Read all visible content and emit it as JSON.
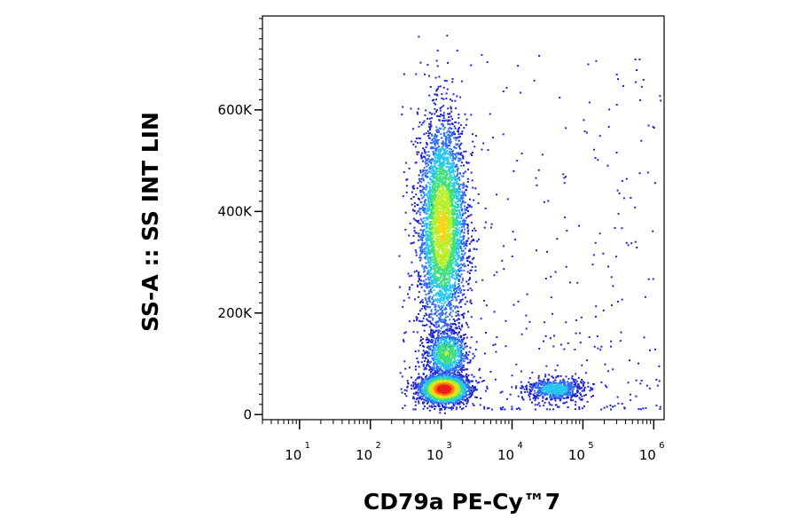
{
  "chart_data": {
    "type": "scatter",
    "style": "flow-cytometry density dot plot",
    "xlabel": "CD79a PE-Cy™7",
    "ylabel": "SS-A :: SS INT LIN",
    "x_scale": "log",
    "xlim": [
      3,
      1400000
    ],
    "x_ticks": [
      {
        "value": 10,
        "base": "10",
        "exp": "1"
      },
      {
        "value": 100,
        "base": "10",
        "exp": "2"
      },
      {
        "value": 1000,
        "base": "10",
        "exp": "3"
      },
      {
        "value": 10000,
        "base": "10",
        "exp": "4"
      },
      {
        "value": 100000,
        "base": "10",
        "exp": "5"
      },
      {
        "value": 1000000,
        "base": "10",
        "exp": "6"
      }
    ],
    "y_scale": "linear",
    "ylim": [
      -10000,
      785000
    ],
    "y_ticks": [
      {
        "value": 0,
        "label": "0"
      },
      {
        "value": 200000,
        "label": "200K"
      },
      {
        "value": 400000,
        "label": "400K"
      },
      {
        "value": 600000,
        "label": "600K"
      }
    ],
    "grid": false,
    "density_colors": [
      "#1f22d6",
      "#2f6df5",
      "#27c6ef",
      "#3fe07f",
      "#b9ef2a",
      "#ffd21a",
      "#ff7a16",
      "#e8201a"
    ],
    "populations": [
      {
        "x_center": 1100,
        "y_center": 50000,
        "x_spread_decades": 0.17,
        "y_spread": 14000,
        "count": 2400,
        "peak_density": 1.0
      },
      {
        "x_center": 1200,
        "y_center": 120000,
        "x_spread_decades": 0.15,
        "y_spread": 24000,
        "count": 800,
        "peak_density": 0.45
      },
      {
        "x_center": 1050,
        "y_center": 370000,
        "x_spread_decades": 0.17,
        "y_spread": 105000,
        "count": 3800,
        "peak_density": 0.6
      },
      {
        "x_center": 40000,
        "y_center": 50000,
        "x_spread_decades": 0.2,
        "y_spread": 11000,
        "count": 650,
        "peak_density": 0.3
      }
    ]
  }
}
